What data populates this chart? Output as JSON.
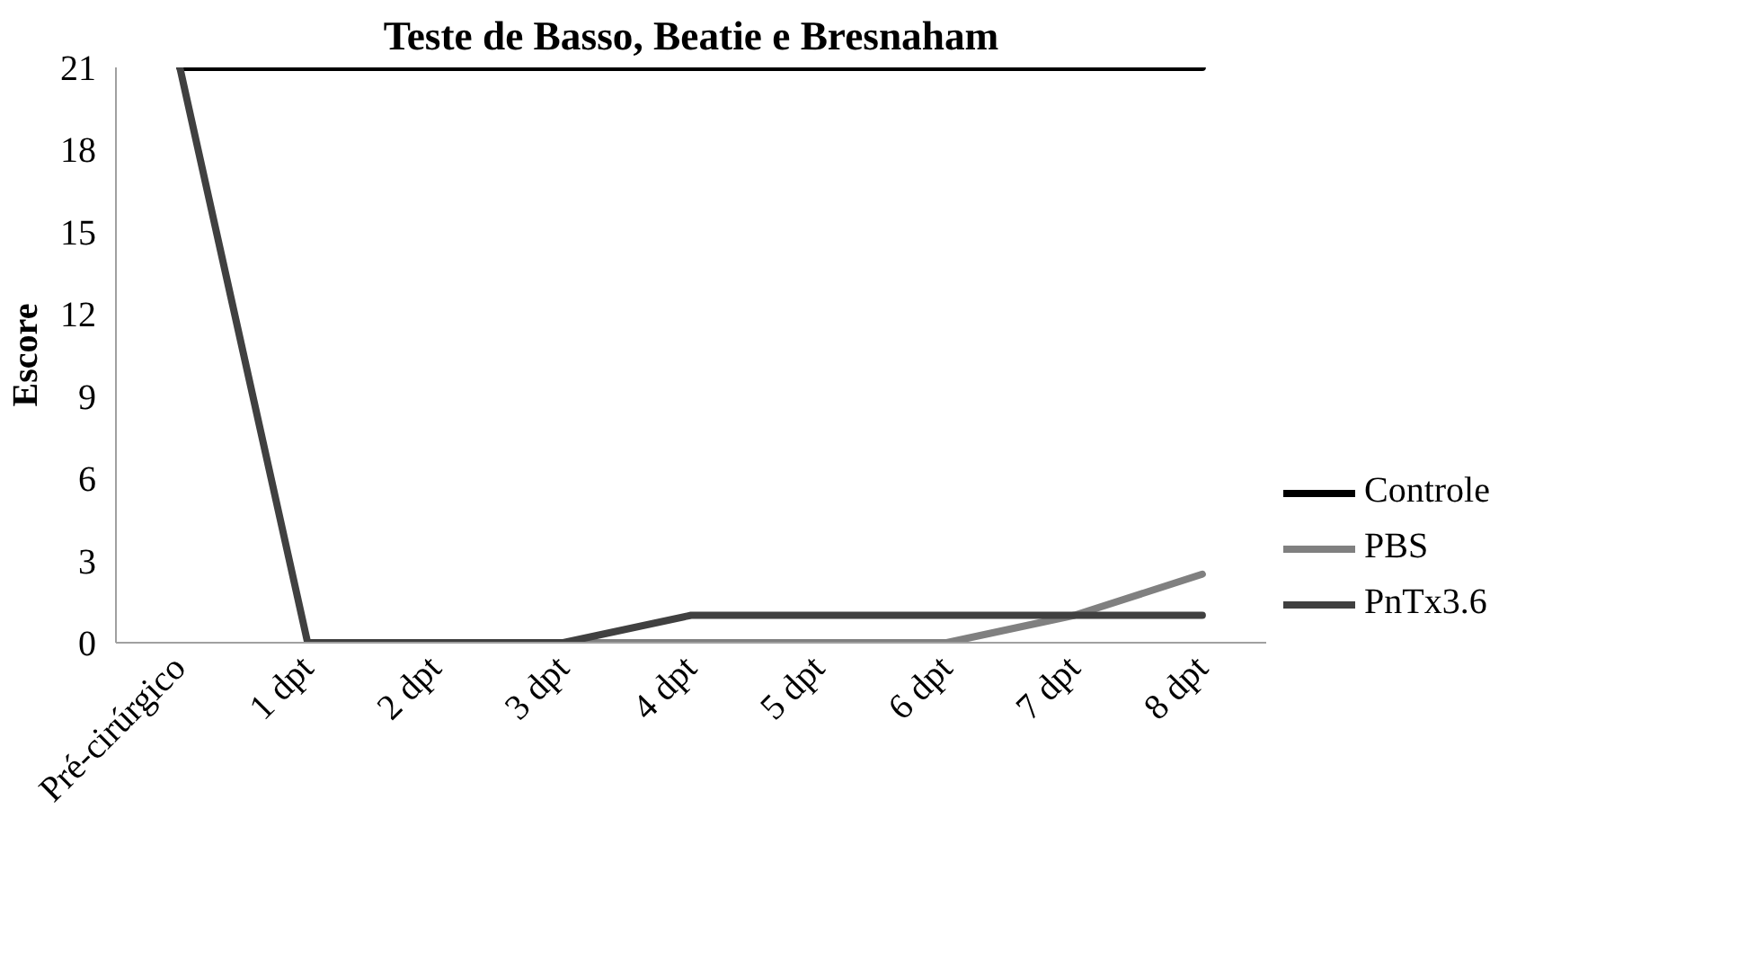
{
  "chart_data": {
    "type": "line",
    "title": "Teste de Basso, Beatie e Bresnaham",
    "ylabel": "Escore",
    "categories": [
      "Pré-cirúrgico",
      "1 dpt",
      "2 dpt",
      "3 dpt",
      "4 dpt",
      "5 dpt",
      "6 dpt",
      "7 dpt",
      "8 dpt"
    ],
    "series": [
      {
        "name": "Controle",
        "color": "#000000",
        "values": [
          21,
          21,
          21,
          21,
          21,
          21,
          21,
          21,
          21
        ]
      },
      {
        "name": "PBS",
        "color": "#808080",
        "values": [
          null,
          0,
          0,
          0,
          0,
          0,
          0,
          1,
          2.5
        ]
      },
      {
        "name": "PnTx3.6",
        "color": "#404040",
        "values": [
          21,
          0,
          0,
          0,
          1,
          1,
          1,
          1,
          1
        ]
      }
    ],
    "ylim": [
      0,
      21
    ],
    "yticks": [
      0,
      3,
      6,
      9,
      12,
      15,
      18,
      21
    ],
    "grid": false,
    "legend": "right",
    "marker": "none",
    "line_style": "solid"
  }
}
